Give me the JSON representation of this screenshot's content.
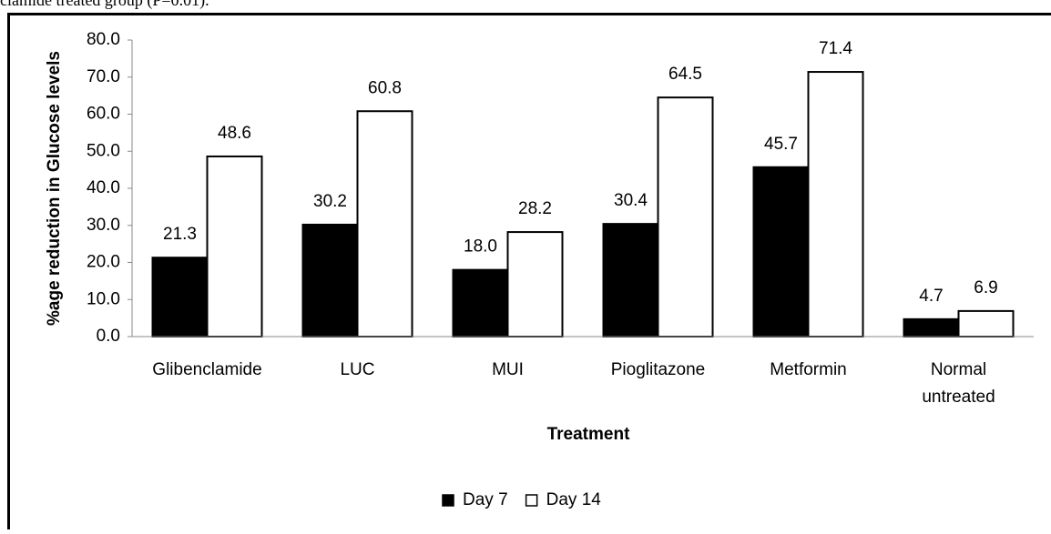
{
  "caption": "clamide treated group (P=0.01).",
  "chart_data": {
    "type": "bar",
    "xlabel": "Treatment",
    "ylabel": "%age reduction in Glucose levels",
    "categories": [
      "Glibenclamide",
      "LUC",
      "MUI",
      "Pioglitazone",
      "Metformin",
      "Normal untreated"
    ],
    "series": [
      {
        "name": "Day 7",
        "color": "#000000",
        "values": [
          21.3,
          30.2,
          18.0,
          30.4,
          45.7,
          4.7
        ],
        "value_labels": [
          "21.3",
          "30.2",
          "18.0",
          "30.4",
          "45.7",
          "4.7"
        ]
      },
      {
        "name": "Day 14",
        "color": "#ffffff",
        "values": [
          48.6,
          60.8,
          28.2,
          64.5,
          71.4,
          6.9
        ],
        "value_labels": [
          "48.6",
          "60.8",
          "28.2",
          "64.5",
          "71.4",
          "6.9"
        ]
      }
    ],
    "ylim": [
      0,
      80
    ],
    "yticks": [
      {
        "value": 0,
        "label": "0.0"
      },
      {
        "value": 10,
        "label": "10.0"
      },
      {
        "value": 20,
        "label": "20.0"
      },
      {
        "value": 30,
        "label": "30.0"
      },
      {
        "value": 40,
        "label": "40.0"
      },
      {
        "value": 50,
        "label": "50.0"
      },
      {
        "value": 60,
        "label": "60.0"
      },
      {
        "value": 70,
        "label": "70.0"
      },
      {
        "value": 80,
        "label": "80.0"
      }
    ],
    "grid": false,
    "legend": "bottom"
  }
}
